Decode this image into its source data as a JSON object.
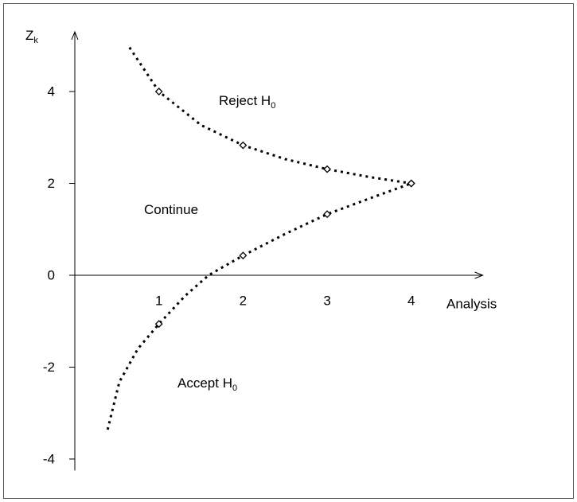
{
  "chart_data": {
    "type": "line",
    "ylabel": {
      "text": "Z",
      "sub": "k"
    },
    "xlabel": "Analysis",
    "annotations": [
      {
        "text": "Reject H",
        "sub": "0"
      },
      {
        "text": "Continue"
      },
      {
        "text": "Accept H",
        "sub": "0"
      }
    ],
    "xlim": [
      0,
      4.85
    ],
    "ylim": [
      -4.25,
      5.3
    ],
    "xticks": [
      1,
      2,
      3,
      4
    ],
    "yticks": [
      -4,
      -2,
      0,
      2,
      4
    ],
    "color": "#000000",
    "series": [
      {
        "style": "dotted",
        "x": [
          0.65,
          1,
          1.5,
          2,
          2.5,
          3,
          3.5,
          4
        ],
        "values": [
          4.96,
          4,
          3.27,
          2.83,
          2.53,
          2.31,
          2.14,
          2.0
        ]
      },
      {
        "style": "dotted",
        "x": [
          0.39,
          0.53,
          0.75,
          1,
          1.31,
          1.59,
          2,
          2.5,
          3,
          3.5,
          4
        ],
        "values": [
          -3.36,
          -2.32,
          -1.6,
          -1.06,
          -0.45,
          0,
          0.43,
          0.9,
          1.33,
          1.67,
          2.0
        ]
      },
      {
        "style": "markers",
        "x": [
          1,
          2,
          3,
          4
        ],
        "values": [
          4.0,
          2.83,
          2.31,
          2.0
        ]
      },
      {
        "style": "markers",
        "x": [
          1,
          2,
          3,
          4
        ],
        "values": [
          -1.06,
          0.43,
          1.33,
          2.0
        ]
      }
    ]
  }
}
